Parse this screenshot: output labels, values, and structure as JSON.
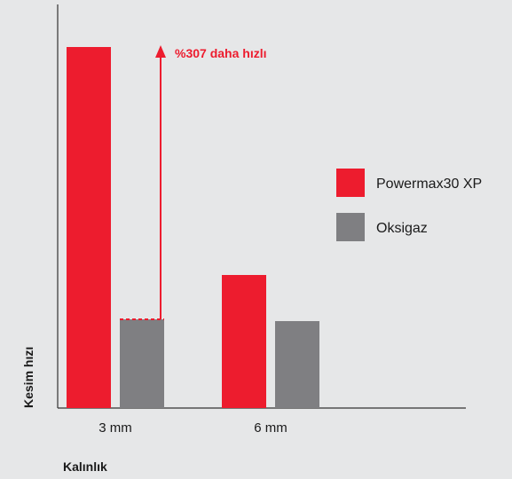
{
  "chart_data": {
    "type": "bar",
    "title": "",
    "xlabel": "Kalınlık",
    "ylabel": "Kesim hızı",
    "categories": [
      "3 mm",
      "6 mm"
    ],
    "series": [
      {
        "name": "Powermax30 XP",
        "values": [
          4.07,
          1.5
        ]
      },
      {
        "name": "Oksigaz",
        "values": [
          1.0,
          0.98
        ]
      }
    ],
    "ylim": [
      0,
      4.4
    ],
    "grid": false,
    "legend_position": "right",
    "colors": {
      "Powermax30 XP": "#ed1c2e",
      "Oksigaz": "#7f7f82",
      "axis": "#333333"
    },
    "annotation": {
      "text": "%307 daha hızlı",
      "category": "3 mm",
      "from_value": 1.0,
      "to_value": 4.07,
      "color": "#ed1c2e"
    }
  }
}
